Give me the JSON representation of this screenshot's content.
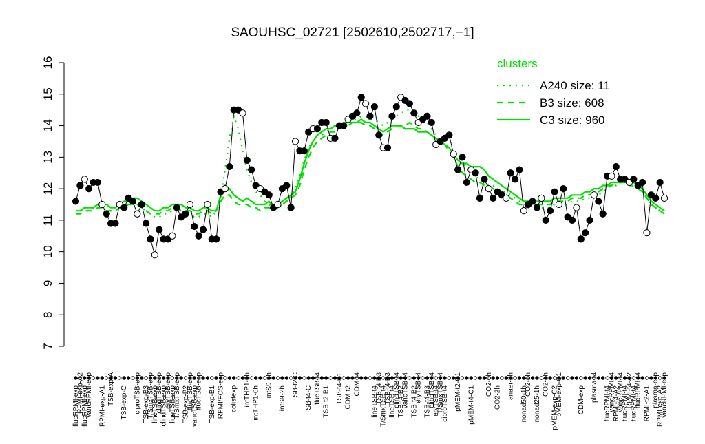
{
  "chart_data": {
    "type": "line",
    "title": "SAOUHSC_02721 [2502610,2502717,−1]",
    "ylim": [
      7,
      16
    ],
    "yticks": [
      7,
      8,
      9,
      10,
      11,
      12,
      13,
      14,
      15,
      16
    ],
    "legend_title": "clusters",
    "legend": "top-right",
    "categories": [
      "flucRPMI-exp",
      "RPMI-exp-A2",
      "flucRPMI-exp",
      "vancRPMI-exp",
      null,
      null,
      "RPMI-exp-A1",
      null,
      "TSB-exp-A",
      null,
      null,
      "TSB-exp-C",
      null,
      null,
      "ciproTSB-exp",
      null,
      "TSB-exp-B3",
      "T/SmxTSB-exp",
      "lineTSB-exp",
      "clindTSB-exp",
      "clindTSB-exp",
      "eryTSB-exp",
      "lineTSB-exp",
      "T/SmxTSB-exp",
      null,
      "TSB-exp-B2",
      "flucTSB-exp",
      "vancTSB-exp",
      "flucTSB-exp",
      null,
      null,
      "TSB-exp-B1",
      null,
      "RPMI/FCS-exp",
      null,
      null,
      "colistexp",
      null,
      null,
      "intTHP1-2h",
      null,
      "intTHP1-6h",
      null,
      null,
      "intS9-6h",
      null,
      null,
      "intS9-2h",
      null,
      null,
      "TSB-t2-C",
      null,
      null,
      "TSB-t4-C",
      null,
      "flucTSB-t4",
      null,
      "TSB-t2-B1",
      null,
      null,
      "TSB-t4-B1",
      null,
      "CDM-t2",
      null,
      "CDM-t4",
      null,
      null,
      null,
      "lineTSB-t4",
      "TSB-t4-B3",
      "T/SmxTSB-t4",
      "TSB-t4-B3",
      "lineTSB-t4",
      "clindTSB-t4",
      "TSB-t4-B2",
      "vancTSB-t4",
      null,
      "TSB-t4-B2",
      "eryTSB-t4",
      null,
      "TSB-t4-B3",
      "clindTSB-t4",
      "eryTSB-t4",
      "T/SmxTSB-t4",
      "ciproTSB-t4",
      null,
      null,
      "pMEM-t2-C1",
      null,
      null,
      "pMEM-t4-C1",
      null,
      null,
      null,
      "CO2-6h",
      null,
      "CO2-2h",
      null,
      null,
      "anaer-2h",
      null,
      null,
      "nonad50-1h",
      "CO2-1h",
      null,
      "nonad25-1h",
      null,
      "CO2-1h",
      null,
      "pMEM-exp-C2",
      "pMEM-exp-C1",
      null,
      null,
      null,
      null,
      "CDM-exp",
      null,
      null,
      "plasma-t4",
      null,
      null,
      "flucRPMI-t4",
      "vancRPMI-t4",
      "RPMI-t4-A2",
      "vancRPMI-t4",
      "flucRPMI-t4",
      "RPMI-t4-A2",
      "flucRPMI-t4",
      "flucRPMI-t4",
      null,
      "RPMI-t2-A1",
      null,
      "plasma-exp",
      "RPMI-exp-A2",
      "vancRPMI-exp"
    ],
    "profile": {
      "color": "#000000",
      "values": [
        11.6,
        12.1,
        12.3,
        12.0,
        12.2,
        12.2,
        11.5,
        11.2,
        10.9,
        10.9,
        11.5,
        11.4,
        11.7,
        11.6,
        11.2,
        11.5,
        10.9,
        10.4,
        9.9,
        10.7,
        10.4,
        10.4,
        10.5,
        11.4,
        11.1,
        11.2,
        11.5,
        10.8,
        10.5,
        10.7,
        11.5,
        10.4,
        10.4,
        11.9,
        12.0,
        12.7,
        14.5,
        14.5,
        14.4,
        12.9,
        12.6,
        12.1,
        12.0,
        11.9,
        11.8,
        11.4,
        11.5,
        12.0,
        12.1,
        11.4,
        13.5,
        13.2,
        13.2,
        13.8,
        13.9,
        13.9,
        14.1,
        14.1,
        13.6,
        13.6,
        14.0,
        14.0,
        14.2,
        14.3,
        14.4,
        14.9,
        14.7,
        14.3,
        14.6,
        13.7,
        13.3,
        13.3,
        14.3,
        14.6,
        14.9,
        14.8,
        14.7,
        14.4,
        14.1,
        14.2,
        14.3,
        14.1,
        13.4,
        13.5,
        13.6,
        13.7,
        13.1,
        12.6,
        13.0,
        12.2,
        12.6,
        12.5,
        11.7,
        12.3,
        12.0,
        11.7,
        11.9,
        11.8,
        11.7,
        12.5,
        12.3,
        12.6,
        11.3,
        11.5,
        11.6,
        11.4,
        11.7,
        11.0,
        11.3,
        11.9,
        11.5,
        12.0,
        11.1,
        11.0,
        11.4,
        10.4,
        10.6,
        11.0,
        11.8,
        11.6,
        11.2,
        12.4,
        12.4,
        12.7,
        12.3,
        12.3,
        12.2,
        12.3,
        12.1,
        12.2,
        10.6,
        11.8,
        11.7,
        12.2,
        11.7
      ]
    },
    "series": [
      {
        "name": "A240 size: 11",
        "color": "#00e000",
        "dash": "dotted",
        "values": [
          11.2,
          11.3,
          11.3,
          11.3,
          11.4,
          11.4,
          11.4,
          11.3,
          11.3,
          11.3,
          11.4,
          11.4,
          11.5,
          11.5,
          11.5,
          11.4,
          11.3,
          11.2,
          11.1,
          11.1,
          11.2,
          11.2,
          11.3,
          11.3,
          11.3,
          11.2,
          11.2,
          11.1,
          11.1,
          11.2,
          11.2,
          11.1,
          11.3,
          11.7,
          12.6,
          13.6,
          14.3,
          13.9,
          13.2,
          12.6,
          12.2,
          11.9,
          11.8,
          11.6,
          11.5,
          11.4,
          11.4,
          11.5,
          11.6,
          11.8,
          12.0,
          12.4,
          12.9,
          13.3,
          13.5,
          13.7,
          13.7,
          13.8,
          13.9,
          14.0,
          14.0,
          14.1,
          14.1,
          14.2,
          14.2,
          14.3,
          14.3,
          14.2,
          14.2,
          14.1,
          14.0,
          14.1,
          14.2,
          14.3,
          14.4,
          14.5,
          14.5,
          14.4,
          14.3,
          14.2,
          14.1,
          13.9,
          13.7,
          13.5,
          13.4,
          13.3,
          13.1,
          12.9,
          12.8,
          12.7,
          12.5,
          12.4,
          12.3,
          12.2,
          12.1,
          12.1,
          12.0,
          11.9,
          11.9,
          11.8,
          11.7,
          11.6,
          11.5,
          11.5,
          11.4,
          11.4,
          11.4,
          11.4,
          11.4,
          11.5,
          11.5,
          11.5,
          11.5,
          11.6,
          11.6,
          11.6,
          11.7,
          11.7,
          11.8,
          11.8,
          11.9,
          12.0,
          12.1,
          12.1,
          12.2,
          12.2,
          12.1,
          12.1,
          12.0,
          11.9,
          11.7,
          11.5,
          11.4,
          11.3,
          11.2
        ]
      },
      {
        "name": "B3 size: 608",
        "color": "#00e000",
        "dash": "dashed",
        "values": [
          11.2,
          11.2,
          11.3,
          11.3,
          11.3,
          11.4,
          11.4,
          11.3,
          11.3,
          11.3,
          11.4,
          11.5,
          11.5,
          11.5,
          11.5,
          11.4,
          11.3,
          11.2,
          11.2,
          11.2,
          11.3,
          11.3,
          11.4,
          11.4,
          11.3,
          11.3,
          11.3,
          11.2,
          11.2,
          11.3,
          11.3,
          11.2,
          11.3,
          11.6,
          11.8,
          11.8,
          11.6,
          11.5,
          11.5,
          11.5,
          11.4,
          11.4,
          11.3,
          11.4,
          11.4,
          11.3,
          11.4,
          11.5,
          11.6,
          11.7,
          11.8,
          12.1,
          12.6,
          13.0,
          13.3,
          13.5,
          13.6,
          13.7,
          13.8,
          13.8,
          13.9,
          14.0,
          14.0,
          14.1,
          14.1,
          14.1,
          14.0,
          14.0,
          13.9,
          13.8,
          13.7,
          13.8,
          13.9,
          14.0,
          14.0,
          14.0,
          14.1,
          14.0,
          13.9,
          13.9,
          13.8,
          13.7,
          13.6,
          13.5,
          13.4,
          13.2,
          13.0,
          12.7,
          12.5,
          12.4,
          12.3,
          12.2,
          12.2,
          12.1,
          12.1,
          12.0,
          11.9,
          11.9,
          11.8,
          11.7,
          11.6,
          11.5,
          11.5,
          11.4,
          11.5,
          11.5,
          11.5,
          11.5,
          11.5,
          11.6,
          11.6,
          11.6,
          11.6,
          11.7,
          11.7,
          11.7,
          11.8,
          11.8,
          11.9,
          11.9,
          12.0,
          12.1,
          12.1,
          12.2,
          12.2,
          12.2,
          12.1,
          12.1,
          12.0,
          11.9,
          11.7,
          11.5,
          11.4,
          11.3,
          11.2
        ]
      },
      {
        "name": "C3 size: 960",
        "color": "#00e000",
        "dash": "solid",
        "values": [
          11.3,
          11.3,
          11.4,
          11.4,
          11.4,
          11.5,
          11.5,
          11.5,
          11.4,
          11.4,
          11.5,
          11.6,
          11.6,
          11.7,
          11.7,
          11.6,
          11.5,
          11.4,
          11.3,
          11.3,
          11.4,
          11.4,
          11.5,
          11.5,
          11.5,
          11.4,
          11.4,
          11.3,
          11.3,
          11.4,
          11.4,
          11.3,
          11.3,
          11.8,
          12.1,
          12.0,
          11.8,
          11.7,
          11.6,
          11.7,
          11.6,
          11.5,
          11.5,
          11.5,
          11.6,
          11.4,
          11.5,
          11.6,
          11.7,
          11.8,
          11.9,
          12.3,
          12.8,
          13.2,
          13.5,
          13.7,
          13.8,
          13.9,
          13.9,
          14.0,
          14.0,
          14.1,
          14.1,
          14.1,
          14.1,
          14.2,
          14.1,
          14.1,
          14.0,
          13.9,
          13.8,
          13.9,
          14.0,
          14.0,
          14.0,
          13.9,
          13.9,
          13.9,
          13.8,
          13.8,
          13.8,
          13.7,
          13.6,
          13.5,
          13.4,
          13.3,
          13.1,
          12.9,
          12.8,
          12.8,
          12.7,
          12.7,
          12.7,
          12.6,
          12.4,
          12.3,
          12.2,
          12.1,
          12.0,
          11.9,
          11.8,
          11.7,
          11.6,
          11.6,
          11.6,
          11.6,
          11.6,
          11.6,
          11.6,
          11.7,
          11.7,
          11.7,
          11.7,
          11.8,
          11.8,
          11.8,
          11.9,
          11.9,
          12.0,
          12.0,
          12.1,
          12.1,
          12.2,
          12.2,
          12.2,
          12.2,
          12.2,
          12.2,
          12.1,
          12.0,
          11.8,
          11.6,
          11.5,
          11.4,
          11.3
        ]
      }
    ]
  }
}
